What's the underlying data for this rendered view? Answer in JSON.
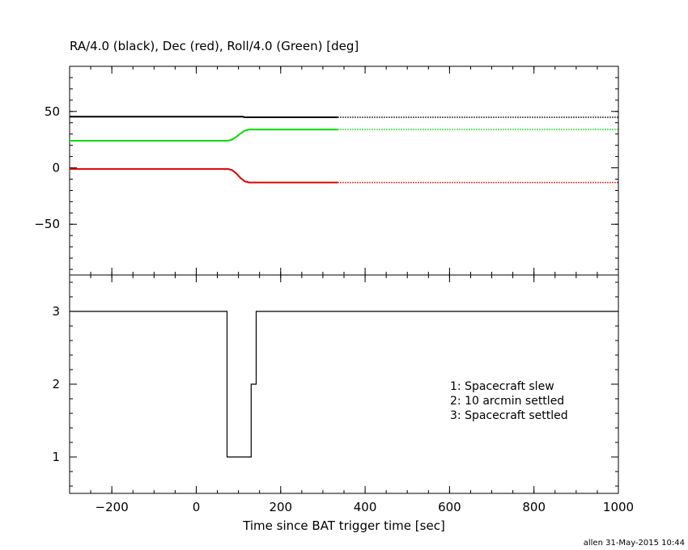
{
  "chart_data": [
    {
      "type": "line",
      "title": "RA/4.0 (black), Dec (red), Roll/4.0 (Green) [deg]",
      "xlim": [
        -300,
        1000
      ],
      "ylim": [
        -95,
        90
      ],
      "x_ticks": [
        -200,
        0,
        200,
        400,
        600,
        800,
        1000
      ],
      "y_ticks": [
        -50,
        0,
        50
      ],
      "series": [
        {
          "color": "#000000",
          "solid_until": 335,
          "x": [
            -300,
            110,
            115,
            335,
            1000
          ],
          "y": [
            45.3,
            45.3,
            44.8,
            44.8,
            44.8
          ]
        },
        {
          "color": "#00dd00",
          "solid_until": 335,
          "x": [
            -300,
            75,
            85,
            95,
            105,
            115,
            125,
            135,
            335,
            1000
          ],
          "y": [
            24,
            24,
            25,
            27.5,
            30.5,
            33,
            34,
            34,
            34,
            34
          ]
        },
        {
          "color": "#dd0000",
          "solid_until": 335,
          "x": [
            -300,
            75,
            85,
            95,
            105,
            115,
            125,
            135,
            335,
            1000
          ],
          "y": [
            -1,
            -1,
            -2,
            -5,
            -9,
            -12,
            -13,
            -13,
            -13,
            -13
          ]
        }
      ]
    },
    {
      "type": "line",
      "xlabel": "Time since BAT trigger time [sec]",
      "xlim": [
        -300,
        1000
      ],
      "ylim": [
        0.5,
        3.5
      ],
      "x_ticks": [
        -200,
        0,
        200,
        400,
        600,
        800,
        1000
      ],
      "y_ticks": [
        1,
        2,
        3
      ],
      "series": [
        {
          "color": "#000000",
          "step": true,
          "x": [
            -300,
            73,
            73,
            130,
            130,
            142,
            142,
            1000
          ],
          "y": [
            3,
            3,
            1,
            1,
            2,
            2,
            3,
            3
          ]
        }
      ],
      "legend": [
        "1: Spacecraft slew",
        "2: 10 arcmin settled",
        "3: Spacecraft settled"
      ]
    }
  ],
  "footer": "allen 31-May-2015 10:44"
}
